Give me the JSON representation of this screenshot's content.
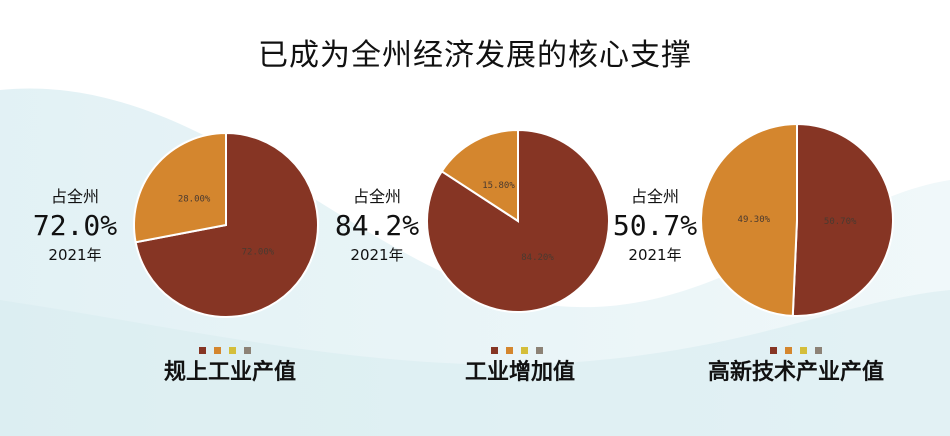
{
  "title": "已成为全州经济发展的核心支撑",
  "colors": [
    "#863524",
    "#D4862E",
    "#D4BE3A",
    "#8C8276"
  ],
  "chart_data": [
    {
      "type": "pie",
      "title": "规上工业产值",
      "side_label": "占全州",
      "side_value": "72.0%",
      "side_year": "2021年",
      "values": [
        72.0,
        28.0
      ],
      "labels": [
        "72.00%",
        "28.00%"
      ]
    },
    {
      "type": "pie",
      "title": "工业增加值",
      "side_label": "占全州",
      "side_value": "84.2%",
      "side_year": "2021年",
      "values": [
        84.2,
        15.8
      ],
      "labels": [
        "84.20%",
        "15.80%"
      ]
    },
    {
      "type": "pie",
      "title": "高新技术产业产值",
      "side_label": "占全州",
      "side_value": "50.7%",
      "side_year": "2021年",
      "values": [
        50.7,
        49.3
      ],
      "labels": [
        "50.70%",
        "49.30%"
      ]
    }
  ]
}
